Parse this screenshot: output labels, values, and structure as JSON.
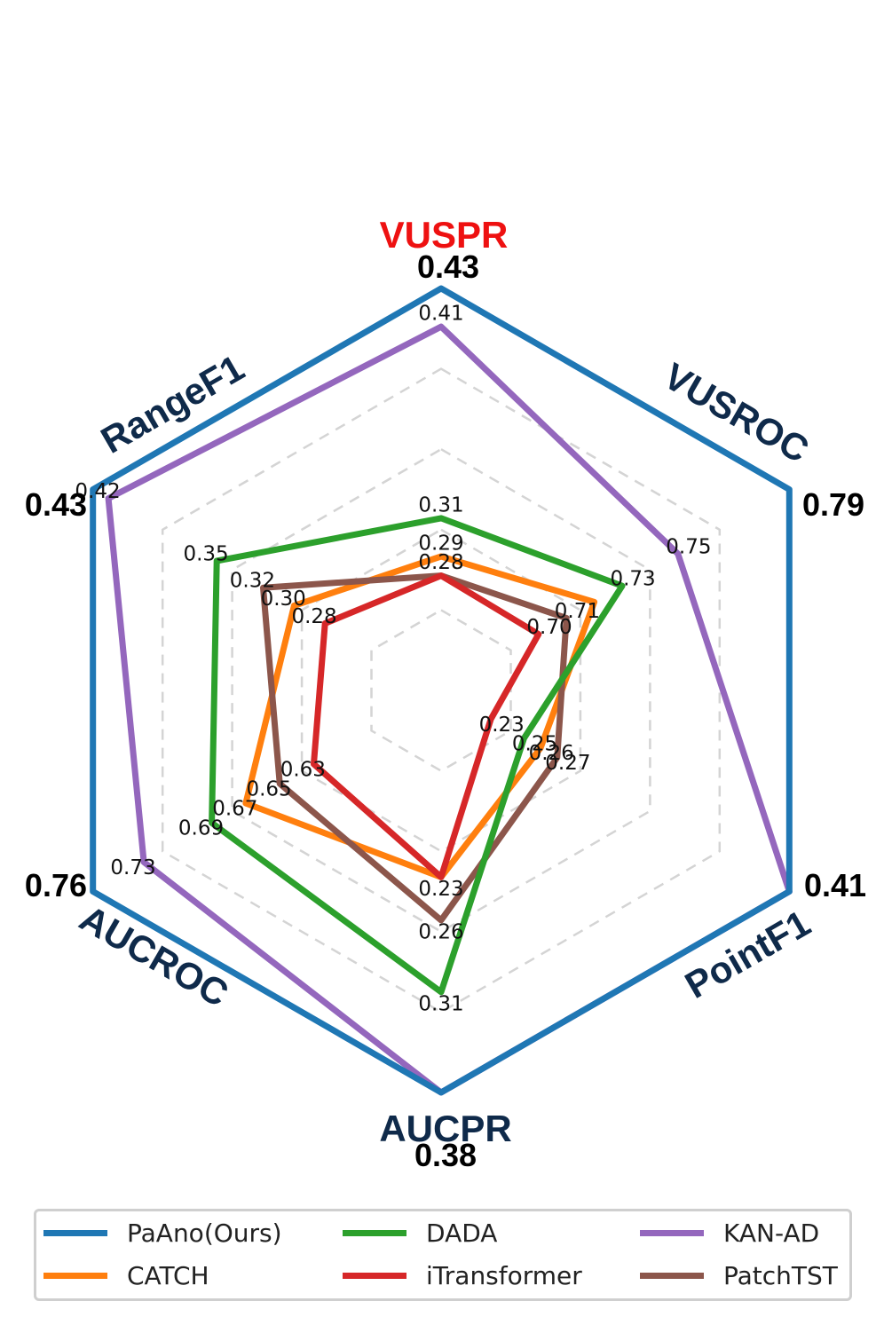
{
  "chart_data": {
    "type": "radar",
    "axes": [
      "VUSPR",
      "VUSROC",
      "PointF1",
      "AUCPR",
      "AUCROC",
      "RangeF1"
    ],
    "highlight_axis": "VUSPR",
    "best_values": [
      "0.43",
      "0.79",
      "0.41",
      "0.38",
      "0.76",
      "0.43"
    ],
    "series": [
      {
        "name": "PaAno(Ours)",
        "color": "#1f77b4",
        "values": [
          0.43,
          0.79,
          0.41,
          0.38,
          0.76,
          0.43
        ],
        "labels": [
          "",
          "",
          "",
          "",
          "",
          ""
        ]
      },
      {
        "name": "CATCH",
        "color": "#ff7f0e",
        "values": [
          0.29,
          0.72,
          0.26,
          0.23,
          0.67,
          0.3
        ],
        "labels": [
          "0.29",
          "",
          "0.26",
          "0.23",
          "0.67",
          "0.30"
        ]
      },
      {
        "name": "DADA",
        "color": "#2ca02c",
        "values": [
          0.31,
          0.73,
          0.25,
          0.31,
          0.69,
          0.35
        ],
        "labels": [
          "0.31",
          "0.73",
          "0.25",
          "0.31",
          "0.69",
          "0.35"
        ]
      },
      {
        "name": "iTransformer",
        "color": "#d62728",
        "values": [
          0.28,
          0.7,
          0.23,
          0.23,
          0.63,
          0.28
        ],
        "labels": [
          "0.28",
          "0.70",
          "0.23",
          "",
          "0.63",
          "0.28"
        ]
      },
      {
        "name": "KAN-AD",
        "color": "#9467bd",
        "values": [
          0.41,
          0.75,
          0.41,
          0.38,
          0.73,
          0.42
        ],
        "labels": [
          "0.41",
          "0.75",
          "",
          "",
          "0.73",
          "0.42"
        ]
      },
      {
        "name": "PatchTST",
        "color": "#8c564b",
        "values": [
          0.28,
          0.71,
          0.27,
          0.26,
          0.65,
          0.32
        ],
        "labels": [
          "",
          "0.71",
          "0.27",
          "0.26",
          "0.65",
          "0.32"
        ]
      }
    ],
    "grid": "dashed",
    "legend_position": "bottom"
  }
}
